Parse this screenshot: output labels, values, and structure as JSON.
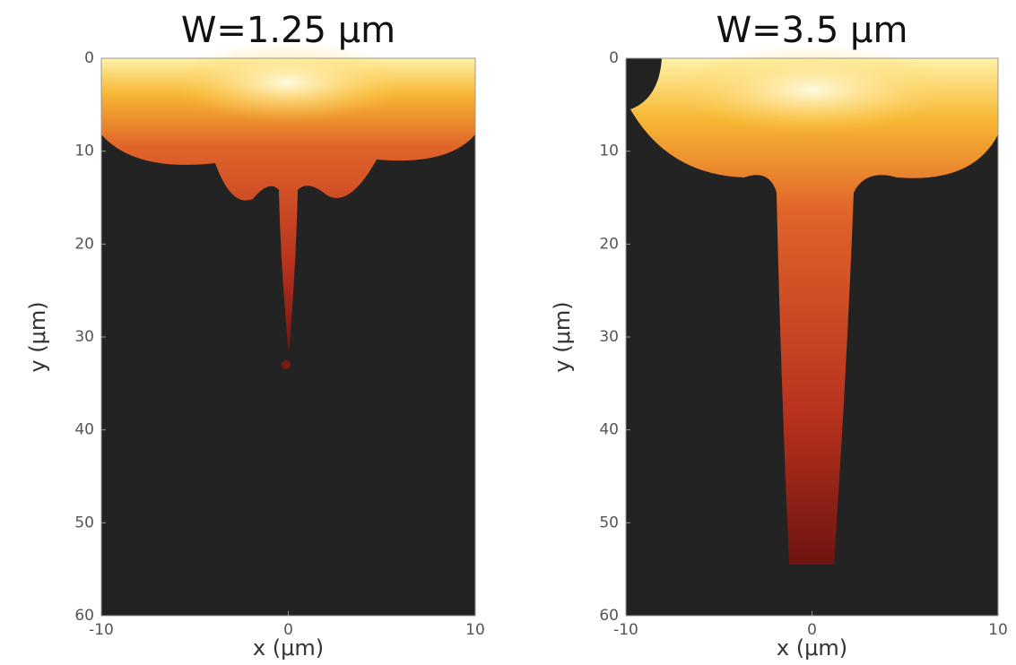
{
  "chart_data": [
    {
      "type": "heatmap",
      "title": "W=1.25 μm",
      "x_label": "x (μm)",
      "y_label": "y (μm)",
      "xlim": [
        -10,
        10
      ],
      "ylim": [
        60,
        0
      ],
      "xticks": [
        -10,
        0,
        10
      ],
      "yticks": [
        0,
        10,
        20,
        30,
        40,
        50,
        60
      ]
    },
    {
      "type": "heatmap",
      "title": "W=3.5 μm",
      "x_label": "x (μm)",
      "y_label": "y (μm)",
      "xlim": [
        -10,
        10
      ],
      "ylim": [
        60,
        0
      ],
      "xticks": [
        -10,
        0,
        10
      ],
      "yticks": [
        0,
        10,
        20,
        30,
        40,
        50,
        60
      ]
    }
  ]
}
